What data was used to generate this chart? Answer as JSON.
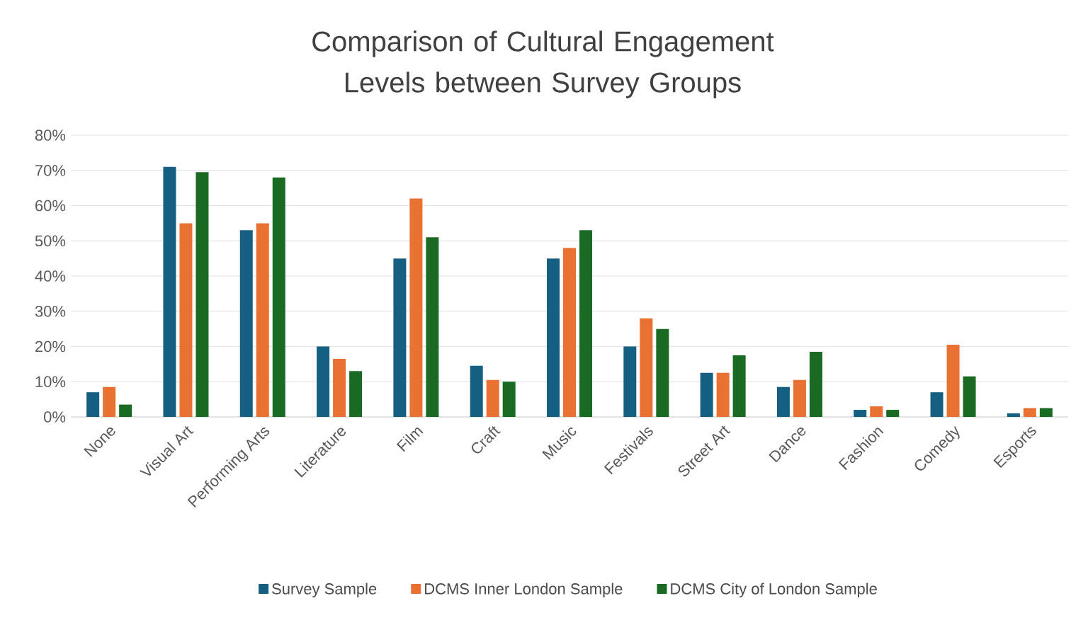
{
  "chart_data": {
    "type": "bar",
    "title": "Comparison of Cultural Engagement Levels between Survey Groups",
    "categories": [
      "None",
      "Visual Art",
      "Performing Arts",
      "Literature",
      "Film",
      "Craft",
      "Music",
      "Festivals",
      "Street Art",
      "Dance",
      "Fashion",
      "Comedy",
      "Esports"
    ],
    "series": [
      {
        "name": "Survey Sample",
        "color": "#156082",
        "values": [
          7,
          71,
          53,
          20,
          45,
          14.5,
          45,
          20,
          12.5,
          8.5,
          2,
          7,
          1
        ]
      },
      {
        "name": "DCMS Inner London Sample",
        "color": "#e97132",
        "values": [
          8.5,
          55,
          55,
          16.5,
          62,
          10.5,
          48,
          28,
          12.5,
          10.5,
          3,
          20.5,
          2.5
        ]
      },
      {
        "name": "DCMS City of London Sample",
        "color": "#196b24",
        "values": [
          3.5,
          69.5,
          68,
          13,
          51,
          10,
          53,
          25,
          17.5,
          18.5,
          2,
          11.5,
          2.5
        ]
      }
    ],
    "ylim": [
      0,
      80
    ],
    "yticks": [
      {
        "value": 0,
        "label": "0%"
      },
      {
        "value": 10,
        "label": "10%"
      },
      {
        "value": 20,
        "label": "20%"
      },
      {
        "value": 30,
        "label": "30%"
      },
      {
        "value": 40,
        "label": "40%"
      },
      {
        "value": 50,
        "label": "50%"
      },
      {
        "value": 60,
        "label": "60%"
      },
      {
        "value": 70,
        "label": "70%"
      },
      {
        "value": 80,
        "label": "80%"
      }
    ],
    "grid": "y",
    "legend": "bottom"
  }
}
